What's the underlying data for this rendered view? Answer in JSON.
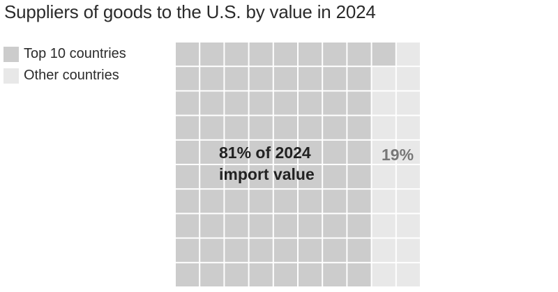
{
  "title": "Suppliers of goods to the U.S. by value in 2024",
  "colors": {
    "top10": "#cccccc",
    "other": "#e8e8e8",
    "gridline": "#ffffff"
  },
  "legend": {
    "items": [
      {
        "label": "Top 10 countries",
        "color": "#cccccc"
      },
      {
        "label": "Other countries",
        "color": "#e8e8e8"
      }
    ]
  },
  "annotations": {
    "top10_line1": "81% of 2024",
    "top10_line2": "import value",
    "other": "19%"
  },
  "chart_data": {
    "type": "waffle",
    "grid_rows": 10,
    "grid_cols": 10,
    "fill_order": "column-major",
    "series": [
      {
        "name": "Top 10 countries",
        "value": 81,
        "unit": "%"
      },
      {
        "name": "Other countries",
        "value": 19,
        "unit": "%"
      }
    ],
    "title": "Suppliers of goods to the U.S. by value in 2024"
  }
}
